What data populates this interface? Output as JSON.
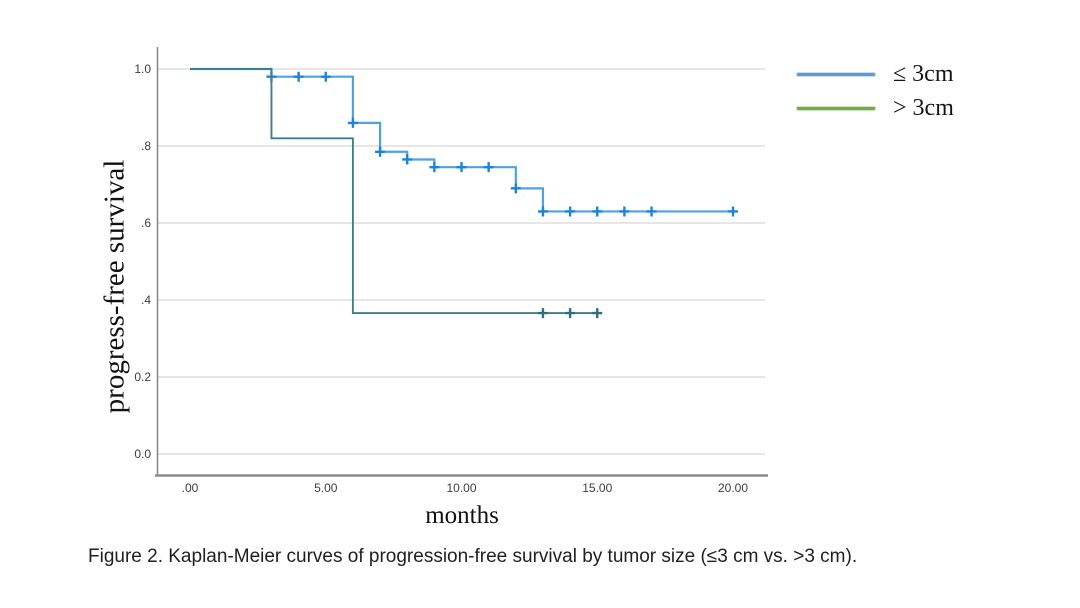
{
  "figure": {
    "caption": "Figure 2. Kaplan-Meier curves of progression-free survival by tumor size (≤3 cm vs. >3 cm)."
  },
  "chart_data": {
    "type": "line",
    "subtype": "kaplan-meier-step",
    "title": "",
    "xlabel": "months",
    "ylabel": "progress-free survival",
    "xlim": [
      -1.2,
      21.3
    ],
    "ylim": [
      -0.06,
      1.06
    ],
    "grid": "horizontal",
    "legend_position": "right-top-outside",
    "xticks": {
      "values": [
        0,
        5,
        10,
        15,
        20
      ],
      "labels": [
        ".00",
        "5.00",
        "10.00",
        "15.00",
        "20.00"
      ]
    },
    "yticks": {
      "values": [
        1.0,
        0.8,
        0.6,
        0.4,
        0.2,
        0.0
      ],
      "labels": [
        "1.0",
        ".8",
        ".6",
        ".4",
        "0.2",
        "0.0"
      ]
    },
    "series": [
      {
        "name": "≤ 3cm",
        "line_color": "#4fa2e0",
        "censor_color": "#1c82dd",
        "legend_color": "#5b9bd5",
        "steps": [
          [
            0,
            1.0
          ],
          [
            3,
            0.98
          ],
          [
            6,
            0.86
          ],
          [
            7,
            0.785
          ],
          [
            8,
            0.765
          ],
          [
            9,
            0.745
          ],
          [
            12,
            0.69
          ],
          [
            13,
            0.63
          ]
        ],
        "end_x": 20,
        "censors": [
          [
            3,
            0.98
          ],
          [
            4,
            0.98
          ],
          [
            5,
            0.98
          ],
          [
            6,
            0.86
          ],
          [
            7,
            0.785
          ],
          [
            8,
            0.765
          ],
          [
            9,
            0.745
          ],
          [
            10,
            0.745
          ],
          [
            11,
            0.745
          ],
          [
            12,
            0.69
          ],
          [
            13,
            0.63
          ],
          [
            14,
            0.63
          ],
          [
            15,
            0.63
          ],
          [
            16,
            0.63
          ],
          [
            17,
            0.63
          ],
          [
            20,
            0.63
          ]
        ]
      },
      {
        "name": "> 3cm",
        "line_color": "#3d7f8c",
        "censor_color": "#2e6f7d",
        "legend_color": "#70ad47",
        "steps": [
          [
            0,
            1.0
          ],
          [
            3,
            0.82
          ],
          [
            6,
            0.366
          ]
        ],
        "end_x": 15,
        "censors": [
          [
            13,
            0.366
          ],
          [
            14,
            0.366
          ],
          [
            15,
            0.366
          ]
        ]
      }
    ],
    "axis_color": "#8a8a8a",
    "grid_color": "#d8d8d8"
  }
}
